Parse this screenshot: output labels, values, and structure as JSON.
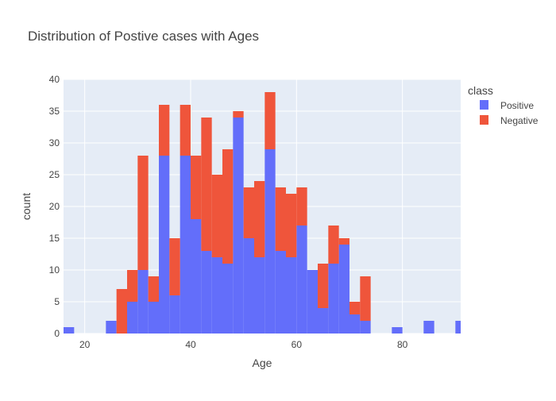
{
  "chart_data": {
    "type": "bar",
    "barmode": "stack",
    "title": "Distribution of Postive cases with Ages",
    "xlabel": "Age",
    "ylabel": "count",
    "xlim": [
      16,
      91
    ],
    "ylim": [
      0,
      40
    ],
    "x_ticks": [
      20,
      40,
      60,
      80
    ],
    "y_ticks": [
      0,
      5,
      10,
      15,
      20,
      25,
      30,
      35,
      40
    ],
    "bin_width": 2,
    "grid": true,
    "legend": {
      "title": "class",
      "placement": "top-right"
    },
    "series": [
      {
        "name": "Positive",
        "color": "#636efa",
        "bins": [
          {
            "x0": 16,
            "count": 1
          },
          {
            "x0": 24,
            "count": 2
          },
          {
            "x0": 26,
            "count": 0
          },
          {
            "x0": 28,
            "count": 5
          },
          {
            "x0": 30,
            "count": 10
          },
          {
            "x0": 32,
            "count": 5
          },
          {
            "x0": 34,
            "count": 28
          },
          {
            "x0": 36,
            "count": 6
          },
          {
            "x0": 38,
            "count": 28
          },
          {
            "x0": 40,
            "count": 18
          },
          {
            "x0": 42,
            "count": 13
          },
          {
            "x0": 44,
            "count": 12
          },
          {
            "x0": 46,
            "count": 11
          },
          {
            "x0": 48,
            "count": 34
          },
          {
            "x0": 50,
            "count": 15
          },
          {
            "x0": 52,
            "count": 12
          },
          {
            "x0": 54,
            "count": 29
          },
          {
            "x0": 56,
            "count": 13
          },
          {
            "x0": 58,
            "count": 12
          },
          {
            "x0": 60,
            "count": 17
          },
          {
            "x0": 62,
            "count": 10
          },
          {
            "x0": 64,
            "count": 4
          },
          {
            "x0": 66,
            "count": 11
          },
          {
            "x0": 68,
            "count": 14
          },
          {
            "x0": 70,
            "count": 3
          },
          {
            "x0": 72,
            "count": 2
          },
          {
            "x0": 78,
            "count": 1
          },
          {
            "x0": 84,
            "count": 2
          },
          {
            "x0": 90,
            "count": 2
          }
        ]
      },
      {
        "name": "Negative",
        "color": "#ef553b",
        "bins": [
          {
            "x0": 26,
            "count": 7
          },
          {
            "x0": 28,
            "count": 5
          },
          {
            "x0": 30,
            "count": 18
          },
          {
            "x0": 32,
            "count": 4
          },
          {
            "x0": 34,
            "count": 8
          },
          {
            "x0": 36,
            "count": 9
          },
          {
            "x0": 38,
            "count": 8
          },
          {
            "x0": 40,
            "count": 10
          },
          {
            "x0": 42,
            "count": 21
          },
          {
            "x0": 44,
            "count": 13
          },
          {
            "x0": 46,
            "count": 18
          },
          {
            "x0": 48,
            "count": 1
          },
          {
            "x0": 50,
            "count": 8
          },
          {
            "x0": 52,
            "count": 12
          },
          {
            "x0": 54,
            "count": 9
          },
          {
            "x0": 56,
            "count": 10
          },
          {
            "x0": 58,
            "count": 10
          },
          {
            "x0": 60,
            "count": 6
          },
          {
            "x0": 64,
            "count": 7
          },
          {
            "x0": 66,
            "count": 6
          },
          {
            "x0": 68,
            "count": 1
          },
          {
            "x0": 70,
            "count": 2
          },
          {
            "x0": 72,
            "count": 7
          }
        ]
      }
    ]
  }
}
